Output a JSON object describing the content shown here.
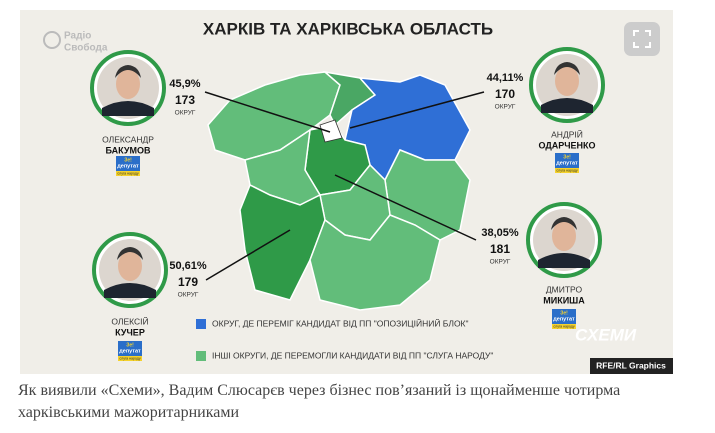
{
  "logo": {
    "line1": "Радіо",
    "line2": "Свобода"
  },
  "title": "ХАРКІВ ТА ХАРКІВСЬКА ОБЛАСТЬ",
  "badge": {
    "ze": "Зе!",
    "deputy": "депутат",
    "party": "слуга народу"
  },
  "candidates": [
    {
      "percent": "45,9%",
      "district": "173",
      "district_label": "ОКРУГ",
      "first_name": "ОЛЕКСАНДР",
      "last_name": "БАКУМОВ"
    },
    {
      "percent": "44,11%",
      "district": "170",
      "district_label": "ОКРУГ",
      "first_name": "АНДРІЙ",
      "last_name": "ОДАРЧЕНКО"
    },
    {
      "percent": "38,05%",
      "district": "181",
      "district_label": "ОКРУГ",
      "first_name": "ДМИТРО",
      "last_name": "МИКИША"
    },
    {
      "percent": "50,61%",
      "district": "179",
      "district_label": "ОКРУГ",
      "first_name": "ОЛЕКСІЙ",
      "last_name": "КУЧЕР"
    }
  ],
  "legend": [
    {
      "label": "ОКРУГ, ДЕ ПЕРЕМІГ КАНДИДАТ ВІД ПП \"ОПОЗИЦІЙНИЙ БЛОК\""
    },
    {
      "label": "ІНШІ ОКРУГИ, ДЕ ПЕРЕМОГЛИ КАНДИДАТИ ВІД ПП \"СЛУГА НАРОДУ\""
    }
  ],
  "brand": "СХЕМИ",
  "credit": "RFE/RL Graphics",
  "caption": "Як виявили «Схеми», Вадим Слюсарєв через бізнес пов’язаний із щонайменше чотирма харківськими мажоритарниками"
}
